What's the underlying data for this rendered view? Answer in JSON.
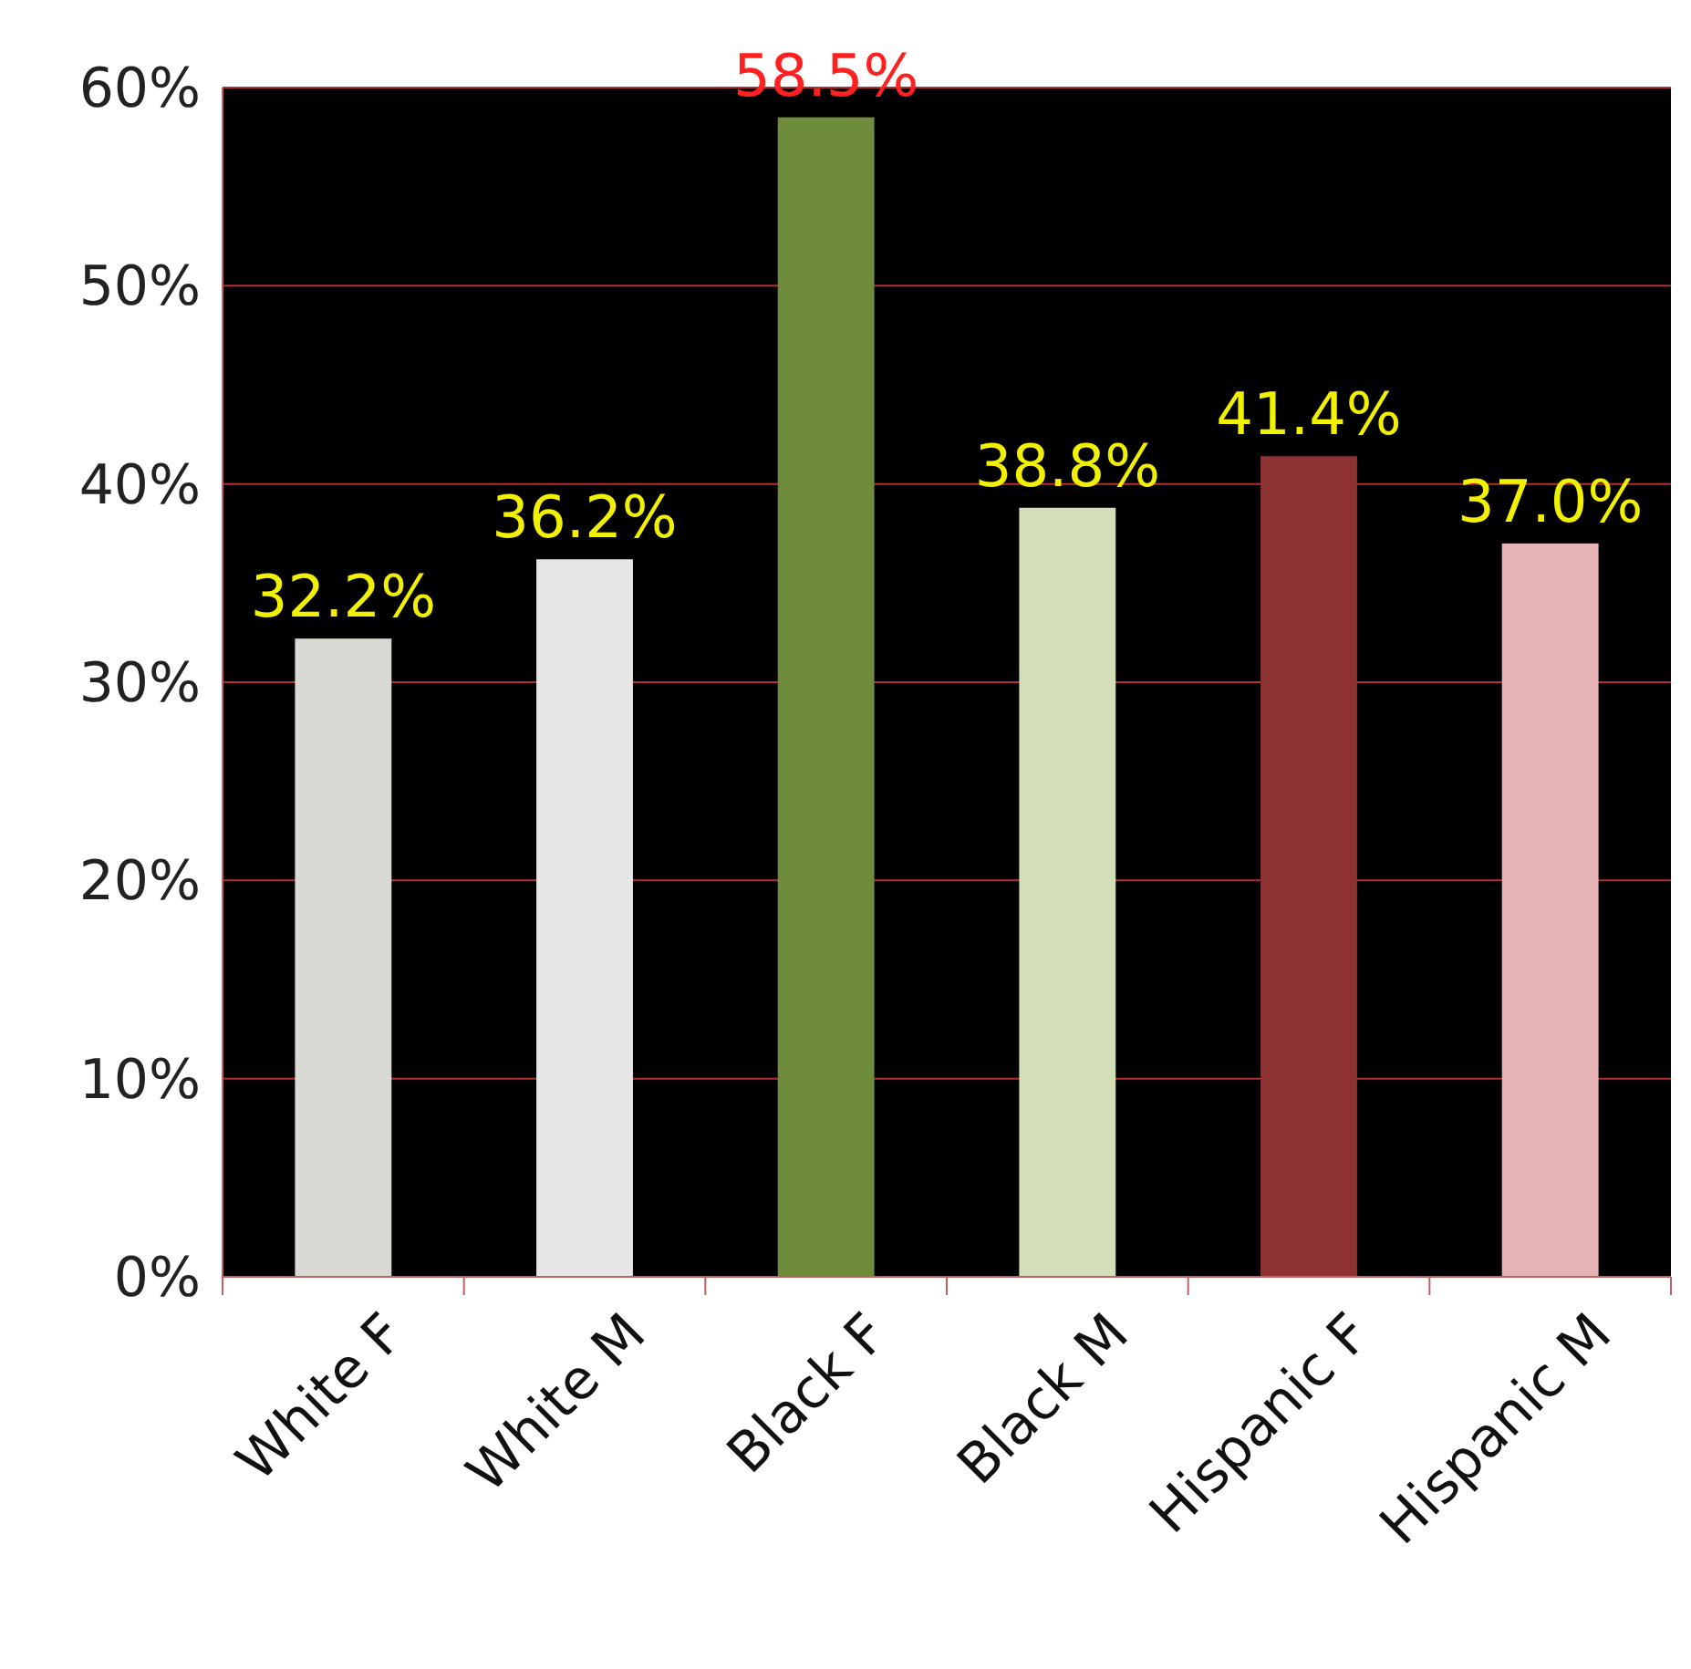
{
  "chart_data": {
    "type": "bar",
    "categories": [
      "White F",
      "White M",
      "Black F",
      "Black M",
      "Hispanic F",
      "Hispanic M"
    ],
    "values": [
      32.2,
      36.2,
      58.5,
      38.8,
      41.4,
      37.0
    ],
    "colors": [
      "#d9d9d3",
      "#e6e6e6",
      "#6e8c3c",
      "#d3dfb8",
      "#8e3232",
      "#e6b4b4"
    ],
    "value_labels": [
      "32.2%",
      "36.2%",
      "58.5%",
      "38.8%",
      "41.4%",
      "37.0%"
    ],
    "ylim": [
      0,
      60
    ],
    "yticks": [
      {
        "value": 0,
        "label": "0%"
      },
      {
        "value": 10,
        "label": "10%"
      },
      {
        "value": 20,
        "label": "20%"
      },
      {
        "value": 30,
        "label": "30%"
      },
      {
        "value": 40,
        "label": "40%"
      },
      {
        "value": 50,
        "label": "50%"
      },
      {
        "value": 60,
        "label": "60%"
      }
    ],
    "grid": "y"
  }
}
